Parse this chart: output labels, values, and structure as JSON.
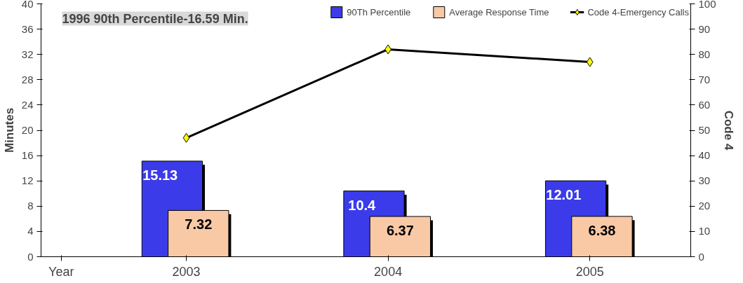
{
  "chart_data": {
    "type": "bar",
    "categories": [
      "2003",
      "2004",
      "2005"
    ],
    "series": [
      {
        "name": "90Th Percentile",
        "color": "#3b3bea",
        "values": [
          15.13,
          10.4,
          12.01
        ],
        "value_labels": [
          "15.13",
          "10.4",
          "12.01"
        ]
      },
      {
        "name": "Average Response Time",
        "color": "#f9c9a6",
        "values": [
          7.32,
          6.37,
          6.38
        ],
        "value_labels": [
          "7.32",
          "6.37",
          "6.38"
        ]
      },
      {
        "name": "Code 4-Emergency Calls",
        "type": "line",
        "axis": "y2",
        "color": "#000000",
        "marker": "diamond",
        "values": [
          47,
          82,
          77
        ]
      }
    ],
    "xlabel": "Year",
    "ylabel": "Minutes",
    "y2label": "Code 4",
    "ylim": [
      0,
      40
    ],
    "yticks": [
      0,
      4,
      8,
      12,
      16,
      20,
      24,
      28,
      32,
      36,
      40
    ],
    "y2lim": [
      0,
      100
    ],
    "y2ticks": [
      0,
      10,
      20,
      30,
      40,
      50,
      60,
      70,
      80,
      90,
      100
    ],
    "annotations": [
      "1996 90th Percentile-16.59 Min."
    ],
    "grid": false,
    "legend": "top right"
  }
}
